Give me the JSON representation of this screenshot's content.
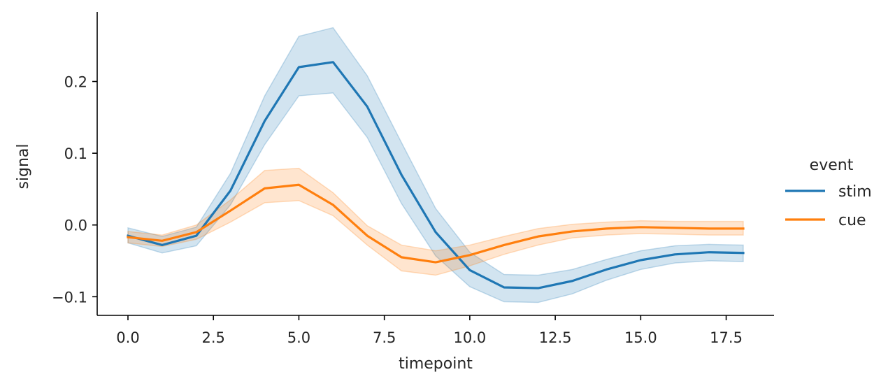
{
  "chart_data": {
    "type": "line",
    "title": "",
    "xlabel": "timepoint",
    "ylabel": "signal",
    "xlim": [
      -0.9,
      18.9
    ],
    "ylim": [
      -0.126,
      0.297
    ],
    "xticks": [
      0.0,
      2.5,
      5.0,
      7.5,
      10.0,
      12.5,
      15.0,
      17.5
    ],
    "xtick_labels": [
      "0.0",
      "2.5",
      "5.0",
      "7.5",
      "10.0",
      "12.5",
      "15.0",
      "17.5"
    ],
    "yticks": [
      -0.1,
      0.0,
      0.1,
      0.2
    ],
    "ytick_labels": [
      "−0.1",
      "0.0",
      "0.1",
      "0.2"
    ],
    "grid": false,
    "legend": {
      "title": "event",
      "placement": "right",
      "entries": [
        "stim",
        "cue"
      ]
    },
    "x": [
      0,
      1,
      2,
      3,
      4,
      5,
      6,
      7,
      8,
      9,
      10,
      11,
      12,
      13,
      14,
      15,
      16,
      17,
      18
    ],
    "series": [
      {
        "name": "stim",
        "color": "#1f77b4",
        "values": [
          -0.015,
          -0.028,
          -0.015,
          0.048,
          0.145,
          0.22,
          0.227,
          0.165,
          0.07,
          -0.01,
          -0.063,
          -0.087,
          -0.088,
          -0.078,
          -0.062,
          -0.049,
          -0.041,
          -0.038,
          -0.039
        ],
        "ci_lower": [
          -0.025,
          -0.039,
          -0.029,
          0.028,
          0.112,
          0.18,
          0.184,
          0.122,
          0.03,
          -0.043,
          -0.086,
          -0.107,
          -0.108,
          -0.096,
          -0.077,
          -0.062,
          -0.053,
          -0.05,
          -0.051
        ],
        "ci_upper": [
          -0.004,
          -0.016,
          -0.003,
          0.072,
          0.18,
          0.263,
          0.275,
          0.208,
          0.115,
          0.023,
          -0.038,
          -0.069,
          -0.07,
          -0.062,
          -0.048,
          -0.036,
          -0.029,
          -0.027,
          -0.028
        ]
      },
      {
        "name": "cue",
        "color": "#ff7f0e",
        "values": [
          -0.017,
          -0.022,
          -0.01,
          0.02,
          0.051,
          0.056,
          0.028,
          -0.015,
          -0.045,
          -0.052,
          -0.042,
          -0.028,
          -0.016,
          -0.009,
          -0.005,
          -0.003,
          -0.004,
          -0.005,
          -0.005
        ],
        "ci_lower": [
          -0.025,
          -0.03,
          -0.02,
          0.004,
          0.031,
          0.034,
          0.013,
          -0.028,
          -0.064,
          -0.07,
          -0.057,
          -0.041,
          -0.028,
          -0.018,
          -0.014,
          -0.012,
          -0.013,
          -0.014,
          -0.014
        ],
        "ci_upper": [
          -0.009,
          -0.014,
          0.0,
          0.035,
          0.076,
          0.079,
          0.045,
          -0.001,
          -0.028,
          -0.036,
          -0.028,
          -0.016,
          -0.005,
          0.001,
          0.004,
          0.006,
          0.005,
          0.005,
          0.005
        ]
      }
    ]
  }
}
